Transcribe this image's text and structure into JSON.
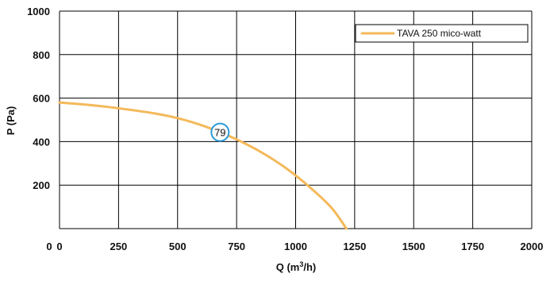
{
  "chart_data": {
    "type": "line",
    "xlabel": "Q (m³/h)",
    "ylabel": "P (Pa)",
    "xlim": [
      0,
      2000
    ],
    "ylim": [
      0,
      1000
    ],
    "x_ticks": [
      0,
      250,
      500,
      750,
      1000,
      1250,
      1500,
      1750,
      2000
    ],
    "y_ticks": [
      0,
      200,
      400,
      600,
      800,
      1000
    ],
    "grid": true,
    "legend_position": "top-right",
    "series": [
      {
        "name": "TAVA 250 mico-watt",
        "color": "#f4b95a",
        "x": [
          0,
          100,
          200,
          300,
          400,
          500,
          600,
          680,
          750,
          850,
          950,
          1050,
          1150,
          1215
        ],
        "y": [
          580,
          571,
          560,
          546,
          530,
          508,
          476,
          443,
          410,
          354,
          285,
          200,
          98,
          0
        ]
      }
    ],
    "annotations": [
      {
        "label": "79",
        "x": 680,
        "y": 443,
        "color": "#2a9ad6"
      }
    ]
  }
}
